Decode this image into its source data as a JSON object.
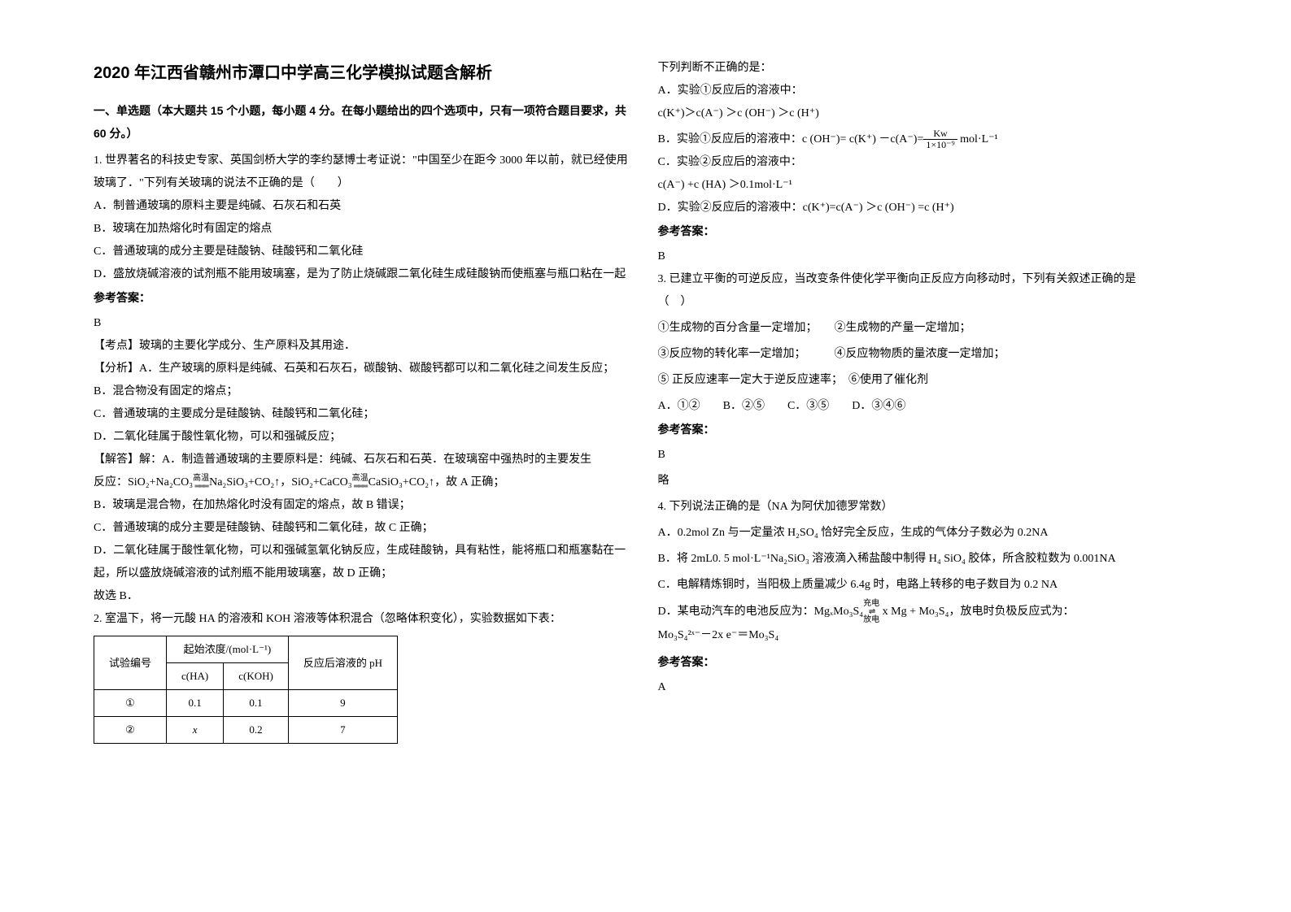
{
  "title": "2020 年江西省赣州市潭口中学高三化学模拟试题含解析",
  "section1_head": "一、单选题（本大题共 15 个小题，每小题 4 分。在每小题给出的四个选项中，只有一项符合题目要求，共 60 分。）",
  "q1": {
    "stem": "1. 世界著名的科技史专家、英国剑桥大学的李约瑟博士考证说：\"中国至少在距今 3000 年以前，就已经使用玻璃了．\"下列有关玻璃的说法不正确的是（　　）",
    "optA": "A．制普通玻璃的原料主要是纯碱、石灰石和石英",
    "optB": "B．玻璃在加热熔化时有固定的熔点",
    "optC": "C．普通玻璃的成分主要是硅酸钠、硅酸钙和二氧化硅",
    "optD": "D．盛放烧碱溶液的试剂瓶不能用玻璃塞，是为了防止烧碱跟二氧化硅生成硅酸钠而使瓶塞与瓶口粘在一起",
    "ans_label": "参考答案：",
    "ans": "B",
    "kp": "【考点】玻璃的主要化学成分、生产原料及其用途．",
    "fx": "【分析】A．生产玻璃的原料是纯碱、石英和石灰石，碳酸钠、碳酸钙都可以和二氧化硅之间发生反应；",
    "fxB": "B．混合物没有固定的熔点；",
    "fxC": "C．普通玻璃的主要成分是硅酸钠、硅酸钙和二氧化硅；",
    "fxD": "D．二氧化硅属于酸性氧化物，可以和强碱反应；",
    "jd1": "【解答】解：A．制造普通玻璃的主要原料是：纯碱、石灰石和石英．在玻璃窑中强热时的主要发生",
    "jd2a": "反应：SiO₂+Na₂CO₃",
    "jd2arrow": "高温",
    "jd2b": "Na₂SiO₃+CO₂↑，SiO₂+CaCO₃",
    "jd2c": "CaSiO₃+CO₂↑，故 A 正确；",
    "jd3": "B．玻璃是混合物，在加热熔化时没有固定的熔点，故 B 错误；",
    "jd4": "C．普通玻璃的成分主要是硅酸钠、硅酸钙和二氧化硅，故 C 正确；",
    "jd5": "D．二氧化硅属于酸性氧化物，可以和强碱氢氧化钠反应，生成硅酸钠，具有粘性，能将瓶口和瓶塞黏在一起，所以盛放烧碱溶液的试剂瓶不能用玻璃塞，故 D 正确；",
    "jd6": "故选 B．"
  },
  "q2": {
    "stem": "2. 室温下，将一元酸 HA 的溶液和 KOH 溶液等体积混合（忽略体积变化），实验数据如下表：",
    "table": {
      "h1": "试验编号",
      "h2": "起始浓度/(mol·L⁻¹)",
      "h3": "反应后溶液的 pH",
      "h2a": "c(HA)",
      "h2b": "c(KOH)",
      "r1": [
        "①",
        "0.1",
        "0.1",
        "9"
      ],
      "r2": [
        "②",
        "x",
        "0.2",
        "7"
      ]
    },
    "p1": "下列判断不正确的是：",
    "pA": "A．实验①反应后的溶液中：",
    "pA2": "c(K⁺)＞c(A⁻) ＞c (OH⁻) ＞c (H⁺)",
    "pB1": "B．实验①反应后的溶液中：c (OH⁻)= c(K⁺) －c(A⁻)=",
    "pB_frac_num": "Kw",
    "pB_frac_den": "1×10⁻⁹",
    "pB2": " mol·L⁻¹",
    "pC": "C．实验②反应后的溶液中：",
    "pC2": "c(A⁻) +c (HA) ＞0.1mol·L⁻¹",
    "pD": "D．实验②反应后的溶液中：c(K⁺)=c(A⁻) ＞c (OH⁻) =c (H⁺)",
    "ans_label": "参考答案：",
    "ans": "B"
  },
  "q3": {
    "stem": "3. 已建立平衡的可逆反应，当改变条件使化学平衡向正反应方向移动时，下列有关叙述正确的是　　　　　　　　　　　　　　（　）",
    "l1": "①生成物的百分含量一定增加；　　②生成物的产量一定增加；",
    "l2": "③反应物的转化率一定增加；　　　④反应物物质的量浓度一定增加；",
    "l3": "⑤ 正反应速率一定大于逆反应速率；　⑥使用了催化剂",
    "opts": "A．①②　　B．②⑤　　C．③⑤　　D．③④⑥",
    "ans_label": "参考答案：",
    "ans": "B",
    "extra": "略"
  },
  "q4": {
    "stem": "4. 下列说法正确的是（NA 为阿伏加德罗常数）",
    "optA": "A．0.2mol Zn 与一定量浓 H₂SO₄ 恰好完全反应，生成的气体分子数必为 0.2NA",
    "optB": "B．将 2mL0. 5 mol·L⁻¹Na₂SiO₃ 溶液滴入稀盐酸中制得 H₄ SiO₄ 胶体，所含胶粒数为 0.001NA",
    "optC": "C．电解精炼铜时，当阳极上质量减少 6.4g 时，电路上转移的电子数目为 0.2 NA",
    "optD1": "D．某电动汽车的电池反应为：MgₓMo₃S₄",
    "optD_top": "充电",
    "optD_bot": "放电",
    "optD2": " x Mg + Mo₃S₄，放电时负极反应式为：",
    "optD3": "Mo₃S₄²ˣ⁻－2x e⁻＝Mo₃S₄",
    "ans_label": "参考答案：",
    "ans": "A"
  }
}
